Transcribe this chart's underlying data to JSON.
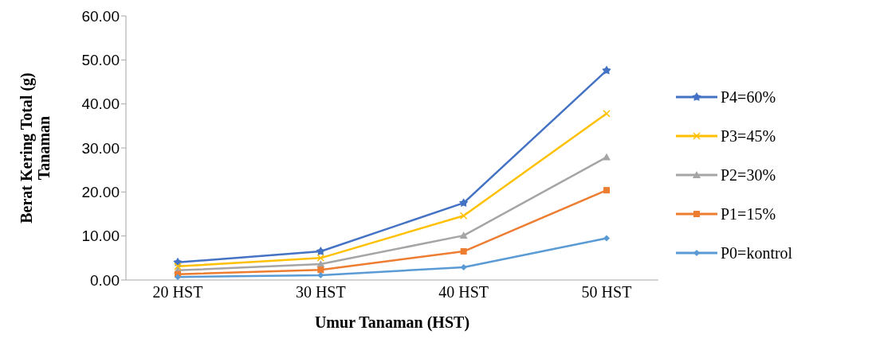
{
  "chart_data": {
    "type": "line",
    "xlabel": "Umur Tanaman (HST)",
    "ylabel": "Berat Kering Total (g) Tanaman",
    "categories": [
      "20 HST",
      "30 HST",
      "40 HST",
      "50 HST"
    ],
    "series": [
      {
        "name": "P4=60%",
        "color": "#4472c4",
        "marker": "star",
        "values": [
          4.0,
          6.5,
          17.5,
          47.6
        ]
      },
      {
        "name": "P3=45%",
        "color": "#ffc000",
        "marker": "cross",
        "values": [
          3.1,
          5.0,
          14.6,
          37.8
        ]
      },
      {
        "name": "P2=30%",
        "color": "#a5a5a5",
        "marker": "triangle",
        "values": [
          2.2,
          3.6,
          10.1,
          27.9
        ]
      },
      {
        "name": "P1=15%",
        "color": "#ed7d31",
        "marker": "square",
        "values": [
          1.3,
          2.3,
          6.5,
          20.4
        ]
      },
      {
        "name": "P0=kontrol",
        "color": "#5b9bd5",
        "marker": "diamond",
        "values": [
          0.7,
          1.1,
          2.9,
          9.5
        ]
      }
    ],
    "ylim": [
      0,
      60
    ],
    "yticks": [
      {
        "value": 0,
        "label": "0.00"
      },
      {
        "value": 10,
        "label": "10.00"
      },
      {
        "value": 20,
        "label": "20.00"
      },
      {
        "value": 30,
        "label": "30.00"
      },
      {
        "value": 40,
        "label": "40.00"
      },
      {
        "value": 50,
        "label": "50.00"
      },
      {
        "value": 60,
        "label": "60.00"
      }
    ],
    "grid": false,
    "legend": "right",
    "line_style": "solid"
  }
}
